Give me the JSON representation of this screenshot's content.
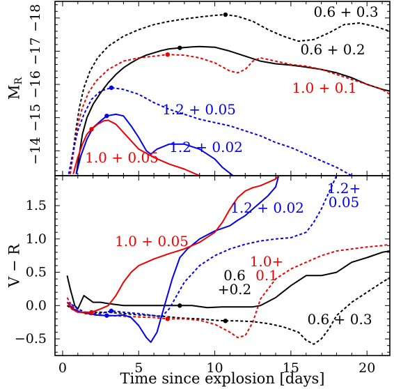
{
  "chart_data": [
    {
      "id": "top",
      "type": "line",
      "ylabel": "M",
      "ylabel_sub": "R",
      "xlim": [
        -0.5,
        21.5
      ],
      "ylim": [
        -13.25,
        -18.5
      ],
      "y_inverted": true,
      "yticks": [
        -14,
        -15,
        -16,
        -17,
        -18
      ],
      "ytick_labels": [
        "−14",
        "−15",
        "−16",
        "−17",
        "−18"
      ],
      "series": [
        {
          "name": "0.6 + 0.3",
          "color": "#000000",
          "dash": "4,3",
          "label_text": "0.6 + 0.3",
          "marker": [
            10.7,
            -18.1
          ],
          "x": [
            0.5,
            0.7,
            0.9,
            1.1,
            1.4,
            1.8,
            2.3,
            3,
            4,
            5,
            6,
            7,
            8,
            9,
            10,
            10.7,
            11.5,
            12.5,
            13.5,
            14.5,
            15.5,
            16.5,
            17.5,
            18.5,
            19.5,
            20.5,
            21.5
          ],
          "y": [
            -13.3,
            -14.0,
            -14.7,
            -15.3,
            -15.9,
            -16.4,
            -16.8,
            -17.15,
            -17.45,
            -17.65,
            -17.8,
            -17.9,
            -17.97,
            -18.03,
            -18.08,
            -18.1,
            -18.05,
            -17.9,
            -17.65,
            -17.45,
            -17.3,
            -17.35,
            -17.55,
            -17.8,
            -17.85,
            -17.75,
            -17.6
          ]
        },
        {
          "name": "0.6 + 0.2",
          "color": "#000000",
          "dash": "",
          "label_text": "0.6 + 0.2",
          "marker": [
            7.7,
            -17.1
          ],
          "x": [
            0.9,
            1.1,
            1.3,
            1.6,
            2,
            2.5,
            3,
            3.5,
            4,
            4.5,
            5,
            5.5,
            6,
            6.5,
            7,
            7.7,
            8.5,
            9,
            10,
            11,
            12,
            13,
            14,
            15,
            16,
            17,
            18,
            19,
            20,
            21,
            21.5
          ],
          "y": [
            -13.3,
            -13.9,
            -14.5,
            -15.0,
            -15.4,
            -15.75,
            -16.05,
            -16.3,
            -16.5,
            -16.65,
            -16.78,
            -16.88,
            -16.95,
            -17.02,
            -17.07,
            -17.1,
            -17.13,
            -17.14,
            -17.12,
            -17.0,
            -16.85,
            -16.7,
            -16.62,
            -16.58,
            -16.52,
            -16.45,
            -16.35,
            -16.2,
            -16.0,
            -15.85,
            -15.8
          ]
        },
        {
          "name": "1.0 + 0.1",
          "color": "#ee0000",
          "dash": "4,3",
          "label_text": "1.0 + 0.1",
          "marker": [
            6.9,
            -16.9
          ],
          "x": [
            0.5,
            0.8,
            1,
            1.3,
            1.7,
            2.2,
            3,
            4,
            5,
            6,
            6.9,
            8,
            9,
            10,
            11,
            11.5,
            12,
            12.5,
            13,
            14,
            15,
            16,
            17,
            18,
            19,
            20,
            21,
            21.5
          ],
          "y": [
            -13.3,
            -14.2,
            -14.8,
            -15.3,
            -15.75,
            -16.1,
            -16.45,
            -16.7,
            -16.8,
            -16.85,
            -16.9,
            -16.88,
            -16.8,
            -16.65,
            -16.4,
            -16.35,
            -16.45,
            -16.7,
            -16.8,
            -16.7,
            -16.6,
            -16.55,
            -16.45,
            -16.3,
            -16.15,
            -16.0,
            -15.85,
            -15.7
          ]
        },
        {
          "name": "1.2 + 0.05",
          "color": "#0000ee",
          "dash": "4,3",
          "label_text": "1.2 + 0.05",
          "marker": [
            3.2,
            -15.9
          ],
          "x": [
            0.4,
            0.7,
            1,
            1.4,
            1.9,
            2.5,
            3.2,
            4,
            5,
            6,
            7,
            8,
            9,
            10,
            11,
            12,
            13,
            14,
            15,
            16,
            17,
            18,
            19
          ],
          "y": [
            -13.3,
            -14.0,
            -14.6,
            -15.1,
            -15.55,
            -15.8,
            -15.9,
            -15.85,
            -15.7,
            -15.45,
            -15.25,
            -15.1,
            -14.95,
            -14.85,
            -14.75,
            -14.6,
            -14.45,
            -14.25,
            -14.1,
            -13.9,
            -13.7,
            -13.5,
            -13.25
          ]
        },
        {
          "name": "1.2 + 0.02",
          "color": "#0000ee",
          "dash": "",
          "label_text": "1.2 + 0.02",
          "marker": [
            2.9,
            -15.05
          ],
          "x": [
            0.9,
            1.2,
            1.6,
            2,
            2.5,
            2.9,
            3.5,
            4,
            4.5,
            5,
            5.5,
            5.8,
            6.2,
            7,
            8,
            9,
            10,
            10.5,
            11.2
          ],
          "y": [
            -13.3,
            -13.85,
            -14.35,
            -14.7,
            -14.9,
            -15.05,
            -15.1,
            -15.05,
            -14.75,
            -14.4,
            -14.0,
            -13.9,
            -14.05,
            -14.2,
            -14.2,
            -14.05,
            -13.75,
            -13.5,
            -13.25
          ]
        },
        {
          "name": "1.0 + 0.05",
          "color": "#ee0000",
          "dash": "",
          "label_text": "1.0 + 0.05",
          "marker": [
            1.9,
            -14.65
          ],
          "x": [
            0.7,
            1,
            1.3,
            1.6,
            1.9,
            2.3,
            2.7,
            3,
            3.5,
            4,
            5,
            6,
            7,
            8,
            9
          ],
          "y": [
            -13.3,
            -13.8,
            -14.2,
            -14.5,
            -14.65,
            -14.8,
            -14.9,
            -14.92,
            -14.8,
            -14.55,
            -14.05,
            -13.8,
            -13.6,
            -13.45,
            -13.25
          ]
        }
      ]
    },
    {
      "id": "bottom",
      "type": "line",
      "title": "",
      "xlabel": "Time since explosion [days]",
      "ylabel": "V − R",
      "xlim": [
        -0.5,
        21.5
      ],
      "ylim": [
        -0.75,
        1.95
      ],
      "xticks": [
        0,
        5,
        10,
        15,
        20
      ],
      "xtick_labels": [
        "0",
        "5",
        "10",
        "15",
        "20"
      ],
      "yticks": [
        -0.5,
        0.0,
        0.5,
        1.0,
        1.5
      ],
      "ytick_labels": [
        "−0.5",
        "0.0",
        "0.5",
        "1.0",
        "1.5"
      ],
      "series": [
        {
          "name": "0.6 + 0.3",
          "color": "#000000",
          "dash": "4,3",
          "label_text": "0.6 + 0.3",
          "marker": [
            10.7,
            -0.23
          ],
          "x": [
            0.3,
            0.6,
            1,
            2,
            3,
            4,
            5,
            6,
            7,
            8,
            9,
            10,
            10.7,
            11.5,
            12.5,
            13.5,
            14.5,
            15.5,
            16,
            16.5,
            17,
            17.5,
            18,
            19,
            20,
            21,
            21.5
          ],
          "y": [
            0.0,
            -0.05,
            -0.1,
            -0.1,
            -0.1,
            -0.12,
            -0.14,
            -0.15,
            -0.17,
            -0.19,
            -0.2,
            -0.22,
            -0.23,
            -0.23,
            -0.24,
            -0.27,
            -0.32,
            -0.4,
            -0.52,
            -0.58,
            -0.5,
            -0.35,
            -0.15,
            0.05,
            0.2,
            0.35,
            0.42
          ]
        },
        {
          "name": "0.6 + 0.2",
          "color": "#000000",
          "dash": "",
          "label_text": "0.6\n+0.2",
          "marker": [
            7.7,
            0.0
          ],
          "x": [
            0.3,
            0.5,
            0.8,
            1,
            1.2,
            1.4,
            1.7,
            2,
            2.5,
            3,
            4,
            5,
            6,
            7,
            7.7,
            8.5,
            9.5,
            10.5,
            11.5,
            12.5,
            13,
            14,
            15,
            16,
            17,
            18,
            19,
            20,
            21,
            21.5
          ],
          "y": [
            0.45,
            0.25,
            0.0,
            -0.05,
            0.05,
            0.15,
            0.1,
            0.05,
            0.05,
            0.03,
            0.0,
            0.0,
            0.0,
            0.0,
            0.0,
            0.0,
            -0.03,
            -0.02,
            -0.02,
            -0.02,
            0.0,
            0.12,
            0.3,
            0.45,
            0.45,
            0.5,
            0.65,
            0.72,
            0.8,
            0.82
          ]
        },
        {
          "name": "1.0 + 0.1",
          "color": "#ee0000",
          "dash": "4,3",
          "label_text": "1.0+\n0.1",
          "marker": [
            6.9,
            -0.2
          ],
          "x": [
            0.3,
            0.6,
            1,
            1.5,
            2,
            3,
            4,
            5,
            6,
            6.9,
            8,
            9,
            10,
            11,
            11.5,
            12,
            12.5,
            13,
            14,
            15,
            16,
            17,
            18,
            19,
            20,
            21,
            21.5
          ],
          "y": [
            0.12,
            0.0,
            -0.08,
            -0.12,
            -0.14,
            -0.15,
            -0.16,
            -0.17,
            -0.18,
            -0.2,
            -0.2,
            -0.22,
            -0.28,
            -0.4,
            -0.48,
            -0.45,
            -0.25,
            0.1,
            0.4,
            0.55,
            0.65,
            0.75,
            0.82,
            0.85,
            0.88,
            0.9,
            0.92
          ]
        },
        {
          "name": "1.2 + 0.05",
          "color": "#0000ee",
          "dash": "4,3",
          "label_text": "1.2+\n0.05",
          "marker": [
            3.2,
            -0.08
          ],
          "x": [
            0.3,
            0.7,
            1,
            1.5,
            2,
            2.5,
            3.2,
            4,
            5,
            6,
            6.5,
            7,
            7.5,
            8,
            9,
            10,
            11,
            12,
            13,
            14,
            15,
            16,
            16.5,
            17,
            17.5,
            18
          ],
          "y": [
            0.05,
            0.0,
            -0.05,
            -0.1,
            -0.12,
            -0.12,
            -0.08,
            -0.1,
            -0.12,
            -0.15,
            -0.17,
            -0.05,
            0.15,
            0.35,
            0.6,
            0.75,
            0.85,
            0.92,
            0.97,
            1.0,
            1.02,
            1.1,
            1.25,
            1.45,
            1.7,
            1.95
          ]
        },
        {
          "name": "1.2 + 0.02",
          "color": "#0000ee",
          "dash": "",
          "label_text": "1.2 + 0.02",
          "marker": [
            2.9,
            -0.15
          ],
          "x": [
            0.3,
            0.7,
            1.2,
            1.7,
            2.2,
            2.9,
            3.5,
            4,
            4.5,
            5,
            5.5,
            5.8,
            6.2,
            6.7,
            7.2,
            7.7,
            8.2,
            9,
            10,
            11,
            11.5,
            12,
            12.5,
            13,
            13.5,
            14,
            14.2
          ],
          "y": [
            0.05,
            -0.05,
            -0.1,
            -0.12,
            -0.14,
            -0.15,
            -0.15,
            -0.14,
            -0.18,
            -0.3,
            -0.48,
            -0.55,
            -0.4,
            0.0,
            0.4,
            0.72,
            0.85,
            1.0,
            1.12,
            1.2,
            1.28,
            1.35,
            1.45,
            1.55,
            1.65,
            1.78,
            1.95
          ]
        },
        {
          "name": "1.0 + 0.05",
          "color": "#ee0000",
          "dash": "",
          "label_text": "1.0 + 0.05",
          "marker": [
            1.9,
            -0.1
          ],
          "x": [
            0.3,
            0.6,
            1,
            1.4,
            1.9,
            2.5,
            3,
            3.5,
            4,
            4.5,
            5,
            6,
            7,
            8,
            9,
            10,
            10.5,
            11,
            11.5,
            12,
            12.5,
            13,
            13.5,
            14,
            14.2
          ],
          "y": [
            0.05,
            -0.05,
            -0.1,
            -0.1,
            -0.1,
            -0.05,
            0.0,
            0.15,
            0.35,
            0.5,
            0.6,
            0.7,
            0.78,
            0.85,
            0.95,
            1.1,
            1.25,
            1.45,
            1.62,
            1.72,
            1.77,
            1.8,
            1.85,
            1.9,
            1.95
          ]
        }
      ]
    }
  ]
}
